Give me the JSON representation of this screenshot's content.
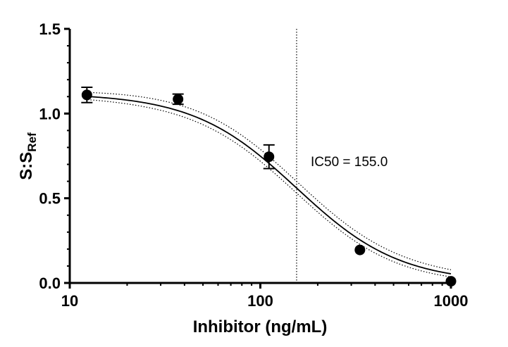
{
  "chart_data": {
    "type": "scatter",
    "xlabel": "Inhibitor (ng/mL)",
    "ylabel_main": "S:S",
    "ylabel_sub": "Ref",
    "x_scale": "log",
    "xlim": [
      10,
      1000
    ],
    "ylim": [
      0,
      1.5
    ],
    "x_ticks": [
      10,
      100,
      1000
    ],
    "x_tick_labels": [
      "10",
      "100",
      "1000"
    ],
    "y_ticks": [
      0,
      0.5,
      1.0,
      1.5
    ],
    "y_tick_labels": [
      "0.0",
      "0.5",
      "1.0",
      "1.5"
    ],
    "grid": false,
    "points": [
      {
        "x": 12.3,
        "y": 1.11,
        "err": 0.045
      },
      {
        "x": 37,
        "y": 1.085,
        "err": 0.03
      },
      {
        "x": 111,
        "y": 0.745,
        "err": 0.07
      },
      {
        "x": 333,
        "y": 0.195,
        "err": 0
      },
      {
        "x": 1000,
        "y": 0.01,
        "err": 0
      }
    ],
    "fit": {
      "top": 1.12,
      "bottom": 0.0,
      "ic50": 155.0,
      "hill": 1.6
    },
    "confidence_band": {
      "upper_offset": 0.04,
      "lower_offset": 0.03
    },
    "ic50_line_x": 155.0,
    "annotation": "IC50 = 155.0"
  }
}
